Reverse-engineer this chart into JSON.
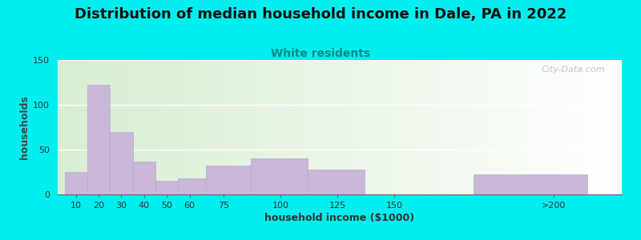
{
  "title": "Distribution of median household income in Dale, PA in 2022",
  "subtitle": "White residents",
  "xlabel": "household income ($1000)",
  "ylabel": "households",
  "background_outer": "#00EEEE",
  "bar_color": "#c9b8d8",
  "bar_edge_color": "#b8a8cc",
  "categories": [
    "10",
    "20",
    "30",
    "40",
    "50",
    "60",
    "75",
    "100",
    "125",
    "150",
    ">200"
  ],
  "values": [
    25,
    122,
    70,
    37,
    15,
    18,
    32,
    40,
    28,
    0,
    22
  ],
  "tick_positions": [
    10,
    20,
    30,
    40,
    50,
    60,
    75,
    100,
    125,
    150,
    220
  ],
  "bar_lefts": [
    5,
    15,
    25,
    35,
    45,
    55,
    67,
    87,
    112,
    162,
    185
  ],
  "bar_widths": [
    10,
    10,
    10,
    10,
    10,
    12,
    20,
    25,
    25,
    25,
    50
  ],
  "xlim": [
    2,
    250
  ],
  "ylim": [
    0,
    150
  ],
  "yticks": [
    0,
    50,
    100,
    150
  ],
  "watermark": "City-Data.com",
  "title_fontsize": 13,
  "subtitle_fontsize": 10,
  "axis_label_fontsize": 9
}
